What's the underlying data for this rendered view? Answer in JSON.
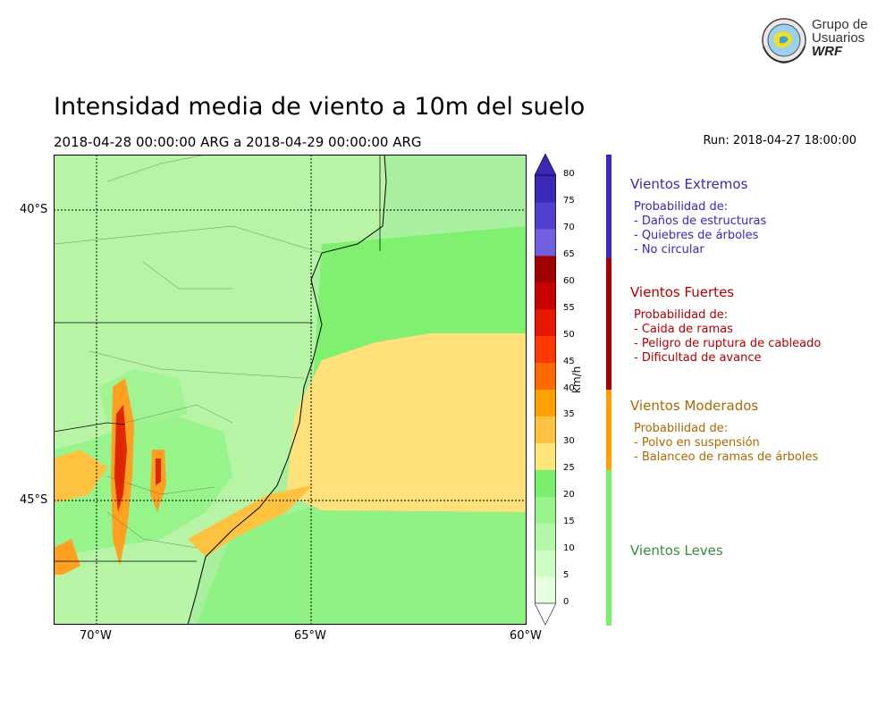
{
  "logo": {
    "line1": "Grupo de",
    "line2": "Usuarios",
    "line3": "WRF"
  },
  "title": "Intensidad media de viento a 10m del suelo",
  "period": "2018-04-28 00:00:00 ARG  a  2018-04-29 00:00:00 ARG",
  "run": "Run: 2018-04-27 18:00:00",
  "map": {
    "lat_labels": [
      "40°S",
      "45°S"
    ],
    "lon_labels": [
      "70°W",
      "65°W",
      "60°W"
    ],
    "colors": {
      "ocean_light": "#a8f0a0",
      "ocean_strong": "#80f070",
      "sea_yellow": "#ffe07a",
      "land_base": "#b8f4a6",
      "orange": "#ffa020",
      "red": "#e02800"
    }
  },
  "colorbar": {
    "unit": "km/h",
    "ticks": [
      "0",
      "5",
      "10",
      "15",
      "20",
      "25",
      "30",
      "35",
      "40",
      "45",
      "50",
      "55",
      "60",
      "65",
      "70",
      "75",
      "80"
    ],
    "colors": [
      "#e6ffe0",
      "#cdfcc2",
      "#b3f8a6",
      "#96f48a",
      "#78ee6c",
      "#ffe57a",
      "#ffc240",
      "#ffa000",
      "#ff6a00",
      "#ff3a00",
      "#e81800",
      "#c80000",
      "#a00000",
      "#7060e0",
      "#5040d0",
      "#3a28b8"
    ]
  },
  "legend": [
    {
      "title": "Vientos Extremos",
      "color": "#3a28b8",
      "bar_color": "#3a28b8",
      "lines": [
        "Probabilidad de:",
        "- Daños de estructuras",
        "- Quiebres de árboles",
        "- No circular"
      ]
    },
    {
      "title": "Vientos Fuertes",
      "color": "#b00000",
      "bar_color": "#a00000",
      "lines": [
        "Probabilidad de:",
        "- Caida de ramas",
        "- Peligro de ruptura de cableado",
        "- Dificultad de avance"
      ]
    },
    {
      "title": "Vientos Moderados",
      "color": "#a86a00",
      "bar_color": "#ffa000",
      "lines": [
        "Probabilidad de:",
        "- Polvo en suspensión",
        "- Balanceo de ramas de árboles"
      ]
    },
    {
      "title": "Vientos Leves",
      "color": "#3a8a3a",
      "bar_color": "#78ee6c",
      "lines": []
    }
  ]
}
